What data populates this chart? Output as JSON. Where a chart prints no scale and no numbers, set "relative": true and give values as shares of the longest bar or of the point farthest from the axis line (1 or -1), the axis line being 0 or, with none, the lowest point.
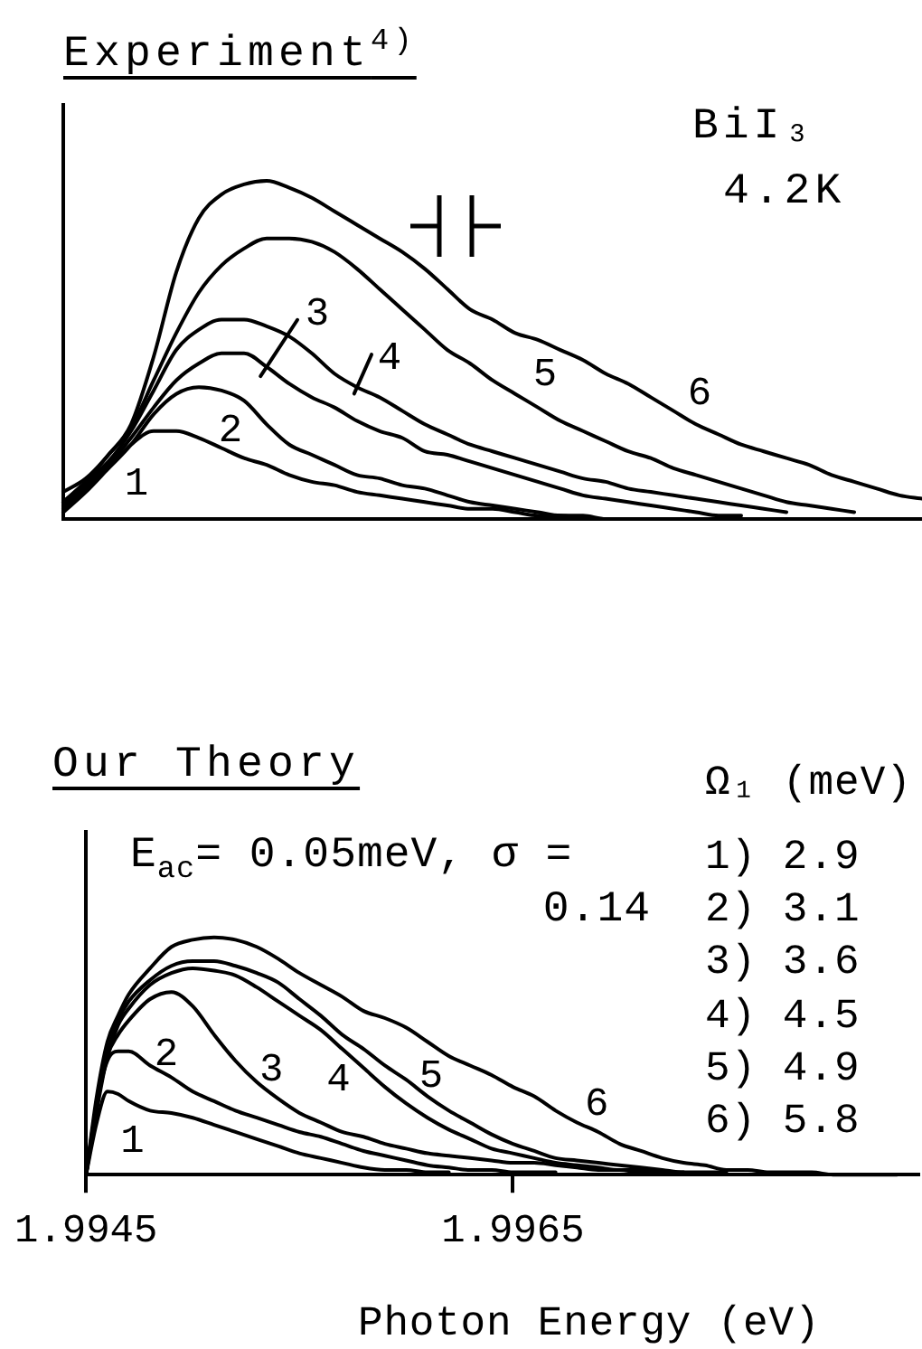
{
  "chart_data": [
    {
      "type": "line",
      "title": "Experiment$^{4)}$",
      "annotations": [
        "BiI₃",
        "4.2K"
      ],
      "relative": true,
      "tick_labels": false,
      "marker": "none",
      "categories": [
        null,
        null,
        null,
        null,
        null,
        null,
        null,
        null,
        null,
        null,
        null,
        null,
        null,
        null,
        null,
        null,
        null,
        null,
        null,
        null,
        null,
        null,
        null,
        null,
        null,
        null,
        null,
        null,
        null,
        null,
        null,
        null,
        null,
        null,
        null,
        null,
        null,
        null,
        null
      ],
      "series": [
        {
          "name": "1",
          "color": "#000000",
          "values": [
            0.02,
            0.08,
            0.15,
            0.22,
            0.26,
            0.26,
            0.24,
            0.21,
            0.18,
            0.16,
            0.13,
            0.11,
            0.1,
            0.08,
            0.07,
            0.06,
            0.05,
            0.04,
            0.03,
            0.03,
            0.02,
            0.01,
            0.01,
            0,
            null,
            null,
            null,
            null,
            null,
            null,
            null,
            null,
            null,
            null,
            null,
            null,
            null,
            null,
            null
          ]
        },
        {
          "name": "2",
          "color": "#000000",
          "values": [
            0.03,
            0.09,
            0.15,
            0.22,
            0.31,
            0.37,
            0.39,
            0.38,
            0.35,
            0.28,
            0.22,
            0.19,
            0.16,
            0.13,
            0.12,
            0.1,
            0.09,
            0.07,
            0.05,
            0.04,
            0.03,
            0.02,
            0.01,
            0.01,
            0,
            0,
            null,
            null,
            null,
            null,
            null,
            null,
            null,
            null,
            null,
            null,
            null,
            null,
            null
          ]
        },
        {
          "name": "3",
          "color": "#000000",
          "values": [
            0.04,
            0.1,
            0.16,
            0.24,
            0.33,
            0.41,
            0.46,
            0.49,
            0.49,
            0.45,
            0.4,
            0.36,
            0.33,
            0.29,
            0.26,
            0.24,
            0.2,
            0.19,
            0.17,
            0.15,
            0.13,
            0.11,
            0.09,
            0.07,
            0.06,
            0.05,
            0.04,
            0.03,
            0.02,
            0.01,
            0.01,
            null,
            null,
            null,
            null,
            null,
            null,
            null,
            null
          ]
        },
        {
          "name": "4",
          "color": "#000000",
          "values": [
            0.05,
            0.11,
            0.17,
            0.26,
            0.38,
            0.5,
            0.56,
            0.59,
            0.59,
            0.57,
            0.54,
            0.49,
            0.43,
            0.39,
            0.36,
            0.32,
            0.28,
            0.25,
            0.22,
            0.2,
            0.18,
            0.16,
            0.14,
            0.12,
            0.11,
            0.09,
            0.08,
            0.07,
            0.06,
            0.05,
            0.04,
            0.03,
            0.02,
            null,
            null,
            null,
            null,
            null,
            null
          ]
        },
        {
          "name": "5",
          "color": "#000000",
          "values": [
            0.05,
            0.11,
            0.19,
            0.27,
            0.41,
            0.55,
            0.67,
            0.75,
            0.8,
            0.83,
            0.83,
            0.82,
            0.79,
            0.74,
            0.68,
            0.62,
            0.56,
            0.5,
            0.46,
            0.41,
            0.37,
            0.33,
            0.29,
            0.26,
            0.23,
            0.2,
            0.18,
            0.15,
            0.13,
            0.11,
            0.09,
            0.07,
            0.05,
            0.04,
            0.03,
            0.02,
            null,
            null,
            null
          ]
        },
        {
          "name": "6",
          "color": "#000000",
          "values": [
            0.08,
            0.12,
            0.19,
            0.28,
            0.48,
            0.73,
            0.89,
            0.96,
            0.99,
            1.0,
            0.98,
            0.95,
            0.91,
            0.87,
            0.83,
            0.79,
            0.74,
            0.68,
            0.62,
            0.59,
            0.55,
            0.53,
            0.5,
            0.47,
            0.43,
            0.4,
            0.36,
            0.32,
            0.28,
            0.25,
            0.22,
            0.2,
            0.18,
            0.16,
            0.13,
            0.11,
            0.09,
            0.07,
            0.06
          ]
        }
      ]
    },
    {
      "type": "line",
      "title": "Our Theory",
      "xlabel": "Photon Energy (eV)",
      "annotations": [
        "E$_{ac}$= 0.05meV, σ = 0.14",
        "Ω₁ (meV)",
        "1) 2.9",
        "2) 3.1",
        "3) 3.6",
        "4) 4.5",
        "5) 4.9",
        "6) 5.8"
      ],
      "relative": true,
      "tick_labels": "x",
      "marker": "none",
      "x": [
        1.9945,
        1.99455,
        1.9946,
        1.99465,
        1.9947,
        1.9948,
        1.9949,
        1.995,
        1.9951,
        1.9952,
        1.9953,
        1.9954,
        1.9955,
        1.9956,
        1.9957,
        1.9958,
        1.9959,
        1.996,
        1.9961,
        1.9962,
        1.9963,
        1.9964,
        1.9965,
        1.9966,
        1.9967,
        1.9968,
        1.9969,
        1.997,
        1.9971,
        1.9972,
        1.9973,
        1.9974,
        1.9975,
        1.9976,
        1.9977,
        1.9978,
        1.9979,
        1.998,
        1.9981,
        1.9982,
        1.9983
      ],
      "xlim": [
        1.9945,
        1.9984
      ],
      "xticks": [
        1.9945,
        1.9965
      ],
      "series": [
        {
          "name": "1",
          "color": "#000000",
          "values": [
            0,
            0.22,
            0.35,
            0.34,
            0.31,
            0.27,
            0.26,
            0.24,
            0.21,
            0.18,
            0.15,
            0.12,
            0.09,
            0.07,
            0.05,
            0.03,
            0.02,
            0.02,
            0.01,
            0.01,
            null,
            null,
            null,
            null,
            null,
            null,
            null,
            null,
            null,
            null,
            null,
            null,
            null,
            null,
            null,
            null,
            null,
            null,
            null,
            null,
            null
          ]
        },
        {
          "name": "2",
          "color": "#000000",
          "values": [
            0,
            0.3,
            0.48,
            0.52,
            0.52,
            0.46,
            0.41,
            0.35,
            0.31,
            0.27,
            0.24,
            0.21,
            0.18,
            0.16,
            0.13,
            0.1,
            0.08,
            0.06,
            0.04,
            0.03,
            0.02,
            0.02,
            0.01,
            0.01,
            0.01,
            null,
            null,
            null,
            null,
            null,
            null,
            null,
            null,
            null,
            null,
            null,
            null,
            null,
            null,
            null,
            null
          ]
        },
        {
          "name": "3",
          "color": "#000000",
          "values": [
            0,
            0.29,
            0.5,
            0.59,
            0.65,
            0.74,
            0.77,
            0.71,
            0.59,
            0.48,
            0.39,
            0.32,
            0.26,
            0.22,
            0.18,
            0.16,
            0.13,
            0.11,
            0.09,
            0.08,
            0.07,
            0.06,
            0.05,
            0.05,
            0.04,
            0.03,
            0.02,
            0.02,
            0.01,
            0.01,
            null,
            null,
            null,
            null,
            null,
            null,
            null,
            null,
            null,
            null,
            null
          ]
        },
        {
          "name": "4",
          "color": "#000000",
          "values": [
            0,
            0.27,
            0.5,
            0.63,
            0.7,
            0.8,
            0.85,
            0.87,
            0.86,
            0.84,
            0.79,
            0.73,
            0.67,
            0.61,
            0.53,
            0.45,
            0.37,
            0.3,
            0.24,
            0.19,
            0.15,
            0.11,
            0.09,
            0.07,
            0.05,
            0.04,
            0.03,
            0.02,
            0.02,
            0.01,
            0.01,
            null,
            null,
            null,
            null,
            null,
            null,
            null,
            null,
            null,
            null
          ]
        },
        {
          "name": "5",
          "color": "#000000",
          "values": [
            0,
            0.29,
            0.51,
            0.65,
            0.73,
            0.82,
            0.88,
            0.9,
            0.9,
            0.88,
            0.85,
            0.81,
            0.74,
            0.67,
            0.59,
            0.53,
            0.46,
            0.4,
            0.33,
            0.27,
            0.22,
            0.17,
            0.13,
            0.1,
            0.07,
            0.06,
            0.05,
            0.04,
            0.03,
            0.02,
            0.01,
            0.01,
            0.01,
            null,
            null,
            null,
            null,
            null,
            null,
            null,
            null
          ]
        },
        {
          "name": "6",
          "color": "#000000",
          "values": [
            0,
            0.33,
            0.56,
            0.67,
            0.76,
            0.87,
            0.96,
            0.99,
            1.0,
            0.99,
            0.96,
            0.91,
            0.85,
            0.8,
            0.75,
            0.69,
            0.66,
            0.62,
            0.56,
            0.5,
            0.46,
            0.42,
            0.37,
            0.33,
            0.27,
            0.22,
            0.18,
            0.13,
            0.1,
            0.07,
            0.05,
            0.04,
            0.02,
            0.02,
            0.01,
            0.01,
            0.01,
            0,
            0,
            0,
            0
          ]
        }
      ]
    }
  ]
}
